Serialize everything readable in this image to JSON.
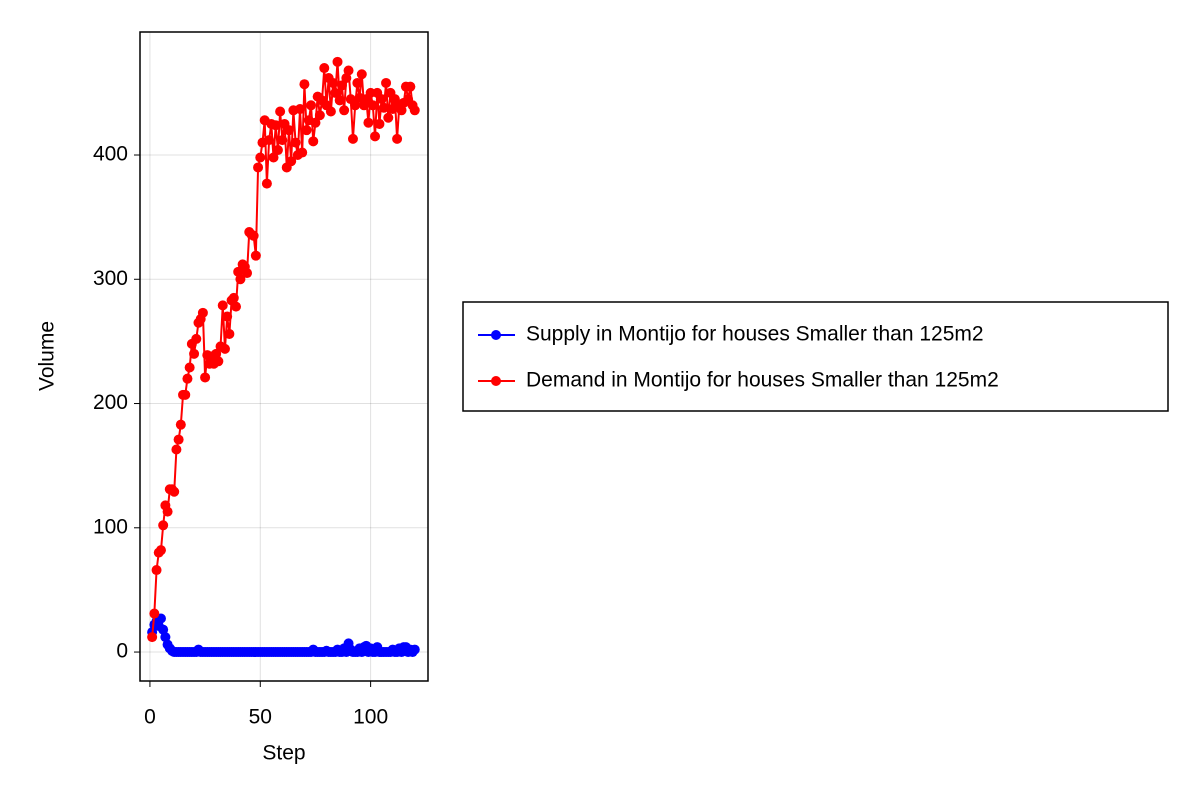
{
  "chart_data": {
    "type": "line",
    "x_label": "Step",
    "y_label": "Volume",
    "x": [
      1,
      2,
      3,
      4,
      5,
      6,
      7,
      8,
      9,
      10,
      11,
      12,
      13,
      14,
      15,
      16,
      17,
      18,
      19,
      20,
      21,
      22,
      23,
      24,
      25,
      26,
      27,
      28,
      29,
      30,
      31,
      32,
      33,
      34,
      35,
      36,
      37,
      38,
      39,
      40,
      41,
      42,
      43,
      44,
      45,
      46,
      47,
      48,
      49,
      50,
      51,
      52,
      53,
      54,
      55,
      56,
      57,
      58,
      59,
      60,
      61,
      62,
      63,
      64,
      65,
      66,
      67,
      68,
      69,
      70,
      71,
      72,
      73,
      74,
      75,
      76,
      77,
      78,
      79,
      80,
      81,
      82,
      83,
      84,
      85,
      86,
      87,
      88,
      89,
      90,
      91,
      92,
      93,
      94,
      95,
      96,
      97,
      98,
      99,
      100,
      101,
      102,
      103,
      104,
      105,
      106,
      107,
      108,
      109,
      110,
      111,
      112,
      113,
      114,
      115,
      116,
      117,
      118,
      119,
      120
    ],
    "series": [
      {
        "name": "Supply in Montijo for houses Smaller than 125m2",
        "color": "#0000ff",
        "values": [
          16,
          22,
          25,
          21,
          27,
          18,
          12,
          6,
          3,
          1,
          0,
          0,
          0,
          0,
          0,
          0,
          0,
          0,
          0,
          0,
          0,
          2,
          0,
          0,
          0,
          0,
          0,
          0,
          0,
          0,
          0,
          0,
          0,
          0,
          0,
          0,
          0,
          0,
          0,
          0,
          0,
          0,
          0,
          0,
          0,
          0,
          0,
          0,
          0,
          0,
          0,
          0,
          0,
          0,
          0,
          0,
          0,
          0,
          0,
          0,
          0,
          0,
          0,
          0,
          0,
          0,
          0,
          0,
          0,
          0,
          0,
          0,
          0,
          2,
          0,
          0,
          0,
          0,
          0,
          1,
          0,
          0,
          0,
          0,
          2,
          0,
          0,
          3,
          0,
          7,
          2,
          0,
          0,
          0,
          3,
          0,
          4,
          5,
          0,
          3,
          0,
          0,
          4,
          0,
          0,
          0,
          0,
          0,
          0,
          2,
          0,
          0,
          3,
          0,
          4,
          4,
          0,
          2,
          0,
          2
        ]
      },
      {
        "name": "Demand in Montijo for houses Smaller than 125m2",
        "color": "#ff0000",
        "values": [
          12,
          31,
          66,
          80,
          82,
          102,
          118,
          113,
          131,
          131,
          129,
          163,
          171,
          183,
          207,
          207,
          220,
          229,
          248,
          240,
          252,
          265,
          268,
          273,
          221,
          239,
          232,
          238,
          232,
          240,
          234,
          246,
          279,
          244,
          270,
          256,
          283,
          285,
          278,
          306,
          300,
          312,
          310,
          305,
          338,
          336,
          335,
          319,
          390,
          398,
          410,
          428,
          377,
          412,
          425,
          398,
          424,
          404,
          435,
          412,
          425,
          390,
          420,
          395,
          436,
          410,
          400,
          437,
          402,
          457,
          420,
          428,
          440,
          411,
          426,
          447,
          432,
          444,
          470,
          440,
          462,
          435,
          458,
          450,
          475,
          444,
          456,
          436,
          462,
          468,
          445,
          413,
          440,
          458,
          446,
          465,
          440,
          445,
          426,
          450,
          440,
          415,
          450,
          425,
          445,
          438,
          458,
          430,
          450,
          437,
          445,
          413,
          440,
          436,
          442,
          455,
          445,
          455,
          440,
          436
        ]
      }
    ],
    "xlim": [
      -4.5,
      126
    ],
    "ylim": [
      -23.3,
      499
    ],
    "xticks": [
      0,
      50,
      100
    ],
    "yticks": [
      0,
      100,
      200,
      300,
      400
    ],
    "grid": true,
    "legend": "right"
  }
}
